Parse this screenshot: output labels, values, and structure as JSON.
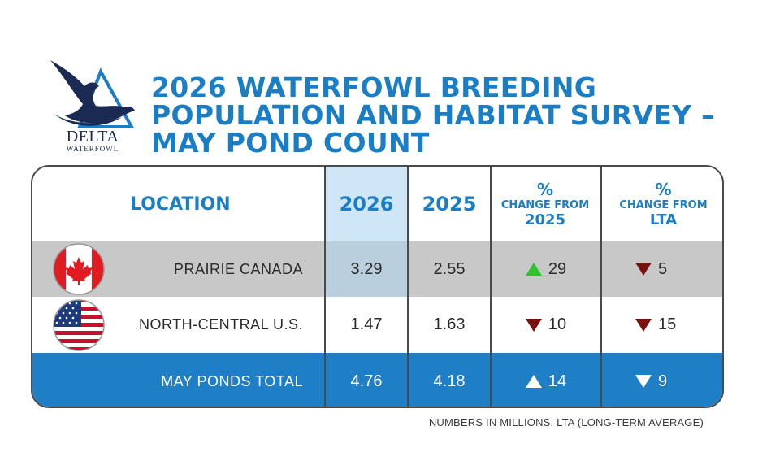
{
  "title_lines": [
    "2026 WATERFOWL BREEDING",
    "POPULATION AND HABITAT SURVEY –",
    "MAY POND COUNT"
  ],
  "logo": {
    "name": "DELTA",
    "sub": "WATERFOWL"
  },
  "colors": {
    "accent": "#1b7ec4",
    "highlight_2026": "#c6e2f3",
    "up": "#2ec22e",
    "down": "#7a1010",
    "total_row": "#1e7fc6"
  },
  "chart_data": {
    "type": "table",
    "columns": {
      "location": "LOCATION",
      "y2026": "2026",
      "y2025": "2025",
      "chg2025": {
        "pct": "%",
        "line1": "CHANGE FROM",
        "line2": "2025"
      },
      "chgLTA": {
        "pct": "%",
        "line1": "CHANGE FROM",
        "line2": "LTA"
      }
    },
    "rows": [
      {
        "location": "PRAIRIE CANADA",
        "flag": "canada-flag-icon",
        "y2026": "3.29",
        "y2025": "2.55",
        "chg2025": "29",
        "chg2025_dir": "up",
        "chgLTA": "5",
        "chgLTA_dir": "down"
      },
      {
        "location": "NORTH-CENTRAL U.S.",
        "flag": "us-flag-icon",
        "y2026": "1.47",
        "y2025": "1.63",
        "chg2025": "10",
        "chg2025_dir": "down",
        "chgLTA": "15",
        "chgLTA_dir": "down"
      },
      {
        "location": "MAY PONDS TOTAL",
        "y2026": "4.76",
        "y2025": "4.18",
        "chg2025": "14",
        "chg2025_dir": "up",
        "chgLTA": "9",
        "chgLTA_dir": "down"
      }
    ],
    "note": "NUMBERS IN MILLIONS. LTA (LONG-TERM AVERAGE)"
  }
}
